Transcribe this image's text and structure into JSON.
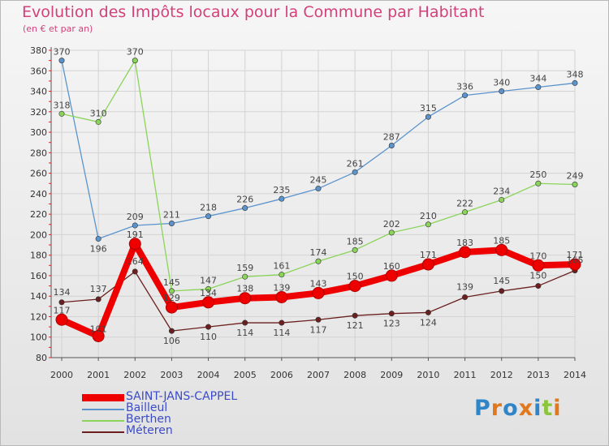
{
  "chart_data": {
    "type": "line",
    "title": "Evolution des Impôts locaux pour la Commune par Habitant",
    "subtitle": "(en € et par an)",
    "x": [
      "2000",
      "2001",
      "2002",
      "2003",
      "2004",
      "2005",
      "2006",
      "2007",
      "2008",
      "2009",
      "2010",
      "2011",
      "2012",
      "2013",
      "2014"
    ],
    "ylim": [
      80,
      380
    ],
    "yticks": [
      80,
      100,
      120,
      140,
      160,
      180,
      200,
      220,
      240,
      260,
      280,
      300,
      320,
      340,
      360,
      380
    ],
    "grid": true,
    "legend_position": "bottom-left",
    "series": [
      {
        "name": "SAINT-JANS-CAPPEL",
        "color": "#ee0000",
        "values": [
          117,
          101,
          191,
          129,
          134,
          138,
          139,
          143,
          150,
          160,
          171,
          183,
          185,
          170,
          171
        ]
      },
      {
        "name": "Bailleul",
        "color": "#5b94cc",
        "values": [
          370,
          196,
          209,
          211,
          218,
          226,
          235,
          245,
          261,
          287,
          315,
          336,
          340,
          344,
          348
        ]
      },
      {
        "name": "Berthen",
        "color": "#8bd45a",
        "values": [
          318,
          310,
          370,
          145,
          147,
          159,
          161,
          174,
          185,
          202,
          210,
          222,
          234,
          250,
          249
        ]
      },
      {
        "name": "Méteren",
        "color": "#6b1f1f",
        "values": [
          134,
          137,
          164,
          106,
          110,
          114,
          114,
          117,
          121,
          123,
          124,
          139,
          145,
          150,
          165
        ]
      }
    ]
  },
  "logo": {
    "letters": [
      {
        "ch": "P",
        "color": "#2e86c8"
      },
      {
        "ch": "r",
        "color": "#e0781e"
      },
      {
        "ch": "o",
        "color": "#2e86c8"
      },
      {
        "ch": "x",
        "color": "#e0781e"
      },
      {
        "ch": "i",
        "color": "#2e86c8"
      },
      {
        "ch": "t",
        "color": "#8cc43c"
      },
      {
        "ch": "i",
        "color": "#e0781e"
      }
    ]
  }
}
